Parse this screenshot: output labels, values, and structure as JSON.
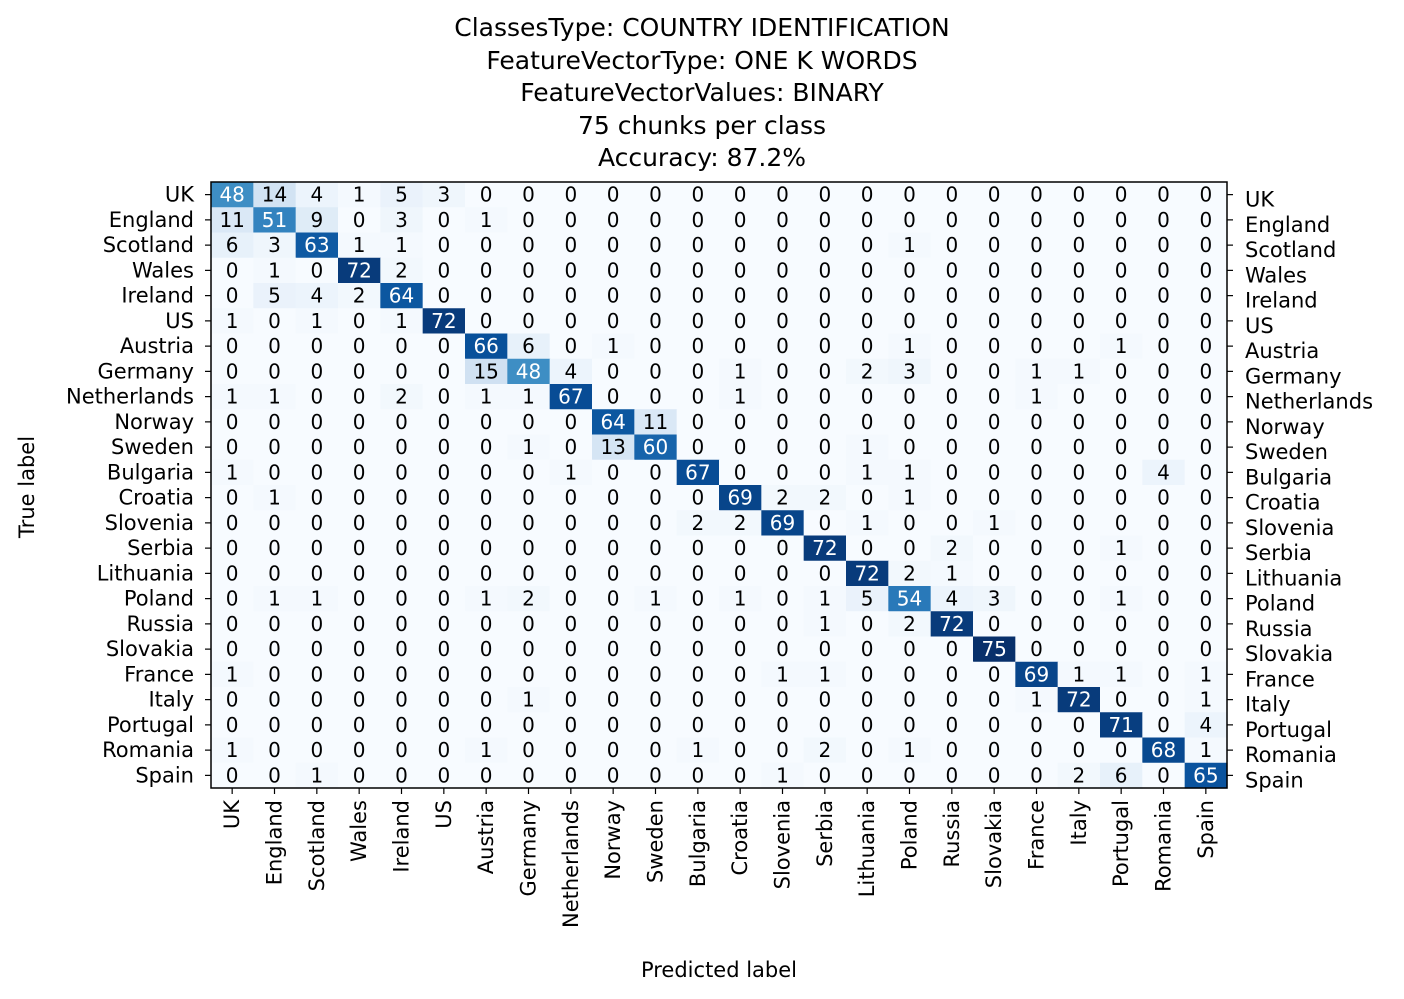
{
  "chart_data": {
    "type": "heatmap",
    "title": [
      "ClassesType: COUNTRY IDENTIFICATION",
      "FeatureVectorType: ONE K WORDS",
      "FeatureVectorValues: BINARY",
      "75 chunks per class",
      "Accuracy: 87.2%"
    ],
    "xlabel": "Predicted label",
    "ylabel": "True label",
    "colormap": "Blues",
    "vmin": 0,
    "vmax": 75,
    "labels": [
      "UK",
      "England",
      "Scotland",
      "Wales",
      "Ireland",
      "US",
      "Austria",
      "Germany",
      "Netherlands",
      "Norway",
      "Sweden",
      "Bulgaria",
      "Croatia",
      "Slovenia",
      "Serbia",
      "Lithuania",
      "Poland",
      "Russia",
      "Slovakia",
      "France",
      "Italy",
      "Portugal",
      "Romania",
      "Spain"
    ],
    "matrix": [
      [
        48,
        14,
        4,
        1,
        5,
        3,
        0,
        0,
        0,
        0,
        0,
        0,
        0,
        0,
        0,
        0,
        0,
        0,
        0,
        0,
        0,
        0,
        0,
        0
      ],
      [
        11,
        51,
        9,
        0,
        3,
        0,
        1,
        0,
        0,
        0,
        0,
        0,
        0,
        0,
        0,
        0,
        0,
        0,
        0,
        0,
        0,
        0,
        0,
        0
      ],
      [
        6,
        3,
        63,
        1,
        1,
        0,
        0,
        0,
        0,
        0,
        0,
        0,
        0,
        0,
        0,
        0,
        1,
        0,
        0,
        0,
        0,
        0,
        0,
        0
      ],
      [
        0,
        1,
        0,
        72,
        2,
        0,
        0,
        0,
        0,
        0,
        0,
        0,
        0,
        0,
        0,
        0,
        0,
        0,
        0,
        0,
        0,
        0,
        0,
        0
      ],
      [
        0,
        5,
        4,
        2,
        64,
        0,
        0,
        0,
        0,
        0,
        0,
        0,
        0,
        0,
        0,
        0,
        0,
        0,
        0,
        0,
        0,
        0,
        0,
        0
      ],
      [
        1,
        0,
        1,
        0,
        1,
        72,
        0,
        0,
        0,
        0,
        0,
        0,
        0,
        0,
        0,
        0,
        0,
        0,
        0,
        0,
        0,
        0,
        0,
        0
      ],
      [
        0,
        0,
        0,
        0,
        0,
        0,
        66,
        6,
        0,
        1,
        0,
        0,
        0,
        0,
        0,
        0,
        1,
        0,
        0,
        0,
        0,
        1,
        0,
        0
      ],
      [
        0,
        0,
        0,
        0,
        0,
        0,
        15,
        48,
        4,
        0,
        0,
        0,
        1,
        0,
        0,
        2,
        3,
        0,
        0,
        1,
        1,
        0,
        0,
        0
      ],
      [
        1,
        1,
        0,
        0,
        2,
        0,
        1,
        1,
        67,
        0,
        0,
        0,
        1,
        0,
        0,
        0,
        0,
        0,
        0,
        1,
        0,
        0,
        0,
        0
      ],
      [
        0,
        0,
        0,
        0,
        0,
        0,
        0,
        0,
        0,
        64,
        11,
        0,
        0,
        0,
        0,
        0,
        0,
        0,
        0,
        0,
        0,
        0,
        0,
        0
      ],
      [
        0,
        0,
        0,
        0,
        0,
        0,
        0,
        1,
        0,
        13,
        60,
        0,
        0,
        0,
        0,
        1,
        0,
        0,
        0,
        0,
        0,
        0,
        0,
        0
      ],
      [
        1,
        0,
        0,
        0,
        0,
        0,
        0,
        0,
        1,
        0,
        0,
        67,
        0,
        0,
        0,
        1,
        1,
        0,
        0,
        0,
        0,
        0,
        4,
        0
      ],
      [
        0,
        1,
        0,
        0,
        0,
        0,
        0,
        0,
        0,
        0,
        0,
        0,
        69,
        2,
        2,
        0,
        1,
        0,
        0,
        0,
        0,
        0,
        0,
        0
      ],
      [
        0,
        0,
        0,
        0,
        0,
        0,
        0,
        0,
        0,
        0,
        0,
        2,
        2,
        69,
        0,
        1,
        0,
        0,
        1,
        0,
        0,
        0,
        0,
        0
      ],
      [
        0,
        0,
        0,
        0,
        0,
        0,
        0,
        0,
        0,
        0,
        0,
        0,
        0,
        0,
        72,
        0,
        0,
        2,
        0,
        0,
        0,
        1,
        0,
        0
      ],
      [
        0,
        0,
        0,
        0,
        0,
        0,
        0,
        0,
        0,
        0,
        0,
        0,
        0,
        0,
        0,
        72,
        2,
        1,
        0,
        0,
        0,
        0,
        0,
        0
      ],
      [
        0,
        1,
        1,
        0,
        0,
        0,
        1,
        2,
        0,
        0,
        1,
        0,
        1,
        0,
        1,
        5,
        54,
        4,
        3,
        0,
        0,
        1,
        0,
        0
      ],
      [
        0,
        0,
        0,
        0,
        0,
        0,
        0,
        0,
        0,
        0,
        0,
        0,
        0,
        0,
        1,
        0,
        2,
        72,
        0,
        0,
        0,
        0,
        0,
        0
      ],
      [
        0,
        0,
        0,
        0,
        0,
        0,
        0,
        0,
        0,
        0,
        0,
        0,
        0,
        0,
        0,
        0,
        0,
        0,
        75,
        0,
        0,
        0,
        0,
        0
      ],
      [
        1,
        0,
        0,
        0,
        0,
        0,
        0,
        0,
        0,
        0,
        0,
        0,
        0,
        1,
        1,
        0,
        0,
        0,
        0,
        69,
        1,
        1,
        0,
        1
      ],
      [
        0,
        0,
        0,
        0,
        0,
        0,
        0,
        1,
        0,
        0,
        0,
        0,
        0,
        0,
        0,
        0,
        0,
        0,
        0,
        1,
        72,
        0,
        0,
        1
      ],
      [
        0,
        0,
        0,
        0,
        0,
        0,
        0,
        0,
        0,
        0,
        0,
        0,
        0,
        0,
        0,
        0,
        0,
        0,
        0,
        0,
        0,
        71,
        0,
        4
      ],
      [
        1,
        0,
        0,
        0,
        0,
        0,
        1,
        0,
        0,
        0,
        0,
        1,
        0,
        0,
        2,
        0,
        1,
        0,
        0,
        0,
        0,
        0,
        68,
        1
      ],
      [
        0,
        0,
        1,
        0,
        0,
        0,
        0,
        0,
        0,
        0,
        0,
        0,
        0,
        1,
        0,
        0,
        0,
        0,
        0,
        0,
        2,
        6,
        0,
        65
      ]
    ]
  }
}
